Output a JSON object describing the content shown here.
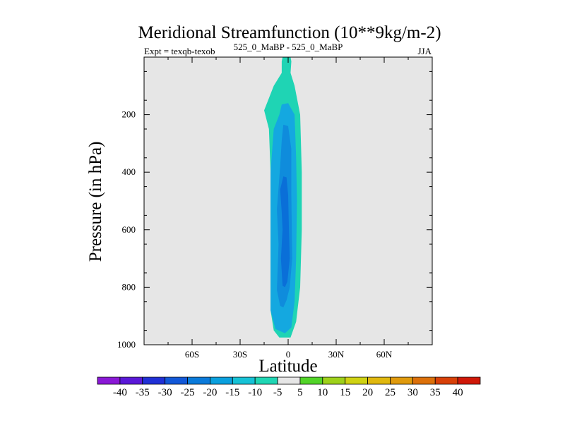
{
  "chart_data": {
    "type": "contour",
    "title": "Meridional Streamfunction (10**9kg/m-2)",
    "subtitle_left": "Expt = texqb-texob",
    "subtitle_center": "525_0_MaBP - 525_0_MaBP",
    "subtitle_right": "JJA",
    "xlabel": "Latitude",
    "ylabel": "Pressure (in hPa)",
    "xlim": [
      -90,
      90
    ],
    "ylim": [
      1000,
      0
    ],
    "x_ticks": [
      {
        "value": -60,
        "label": "60S"
      },
      {
        "value": -30,
        "label": "30S"
      },
      {
        "value": 0,
        "label": "0"
      },
      {
        "value": 30,
        "label": "30N"
      },
      {
        "value": 60,
        "label": "60N"
      }
    ],
    "y_ticks": [
      {
        "value": 200,
        "label": "200"
      },
      {
        "value": 400,
        "label": "400"
      },
      {
        "value": 600,
        "label": "600"
      },
      {
        "value": 800,
        "label": "800"
      },
      {
        "value": 1000,
        "label": "1000"
      }
    ],
    "background_color": "#e6e6e6",
    "contour_regions": [
      {
        "level": "-5 to -10",
        "color": "#1fd4b4",
        "points": [
          [
            -3.5,
            0
          ],
          [
            1.5,
            0
          ],
          [
            2,
            15
          ],
          [
            1.5,
            55
          ],
          [
            4,
            100
          ],
          [
            7.5,
            200
          ],
          [
            8.5,
            400
          ],
          [
            8.5,
            600
          ],
          [
            7.5,
            800
          ],
          [
            5,
            920
          ],
          [
            1.5,
            975
          ],
          [
            -5.5,
            975
          ],
          [
            -9,
            950
          ],
          [
            -11,
            880
          ],
          [
            -11,
            800
          ],
          [
            -11,
            600
          ],
          [
            -11,
            400
          ],
          [
            -12,
            250
          ],
          [
            -15,
            185
          ],
          [
            -9,
            100
          ],
          [
            -4,
            55
          ],
          [
            -4,
            15
          ]
        ]
      },
      {
        "level": "-10 to -15",
        "color": "#14a8e0",
        "points": [
          [
            -4,
            165
          ],
          [
            0,
            160
          ],
          [
            4,
            200
          ],
          [
            5,
            350
          ],
          [
            5.5,
            500
          ],
          [
            5,
            700
          ],
          [
            4,
            850
          ],
          [
            2,
            940
          ],
          [
            -2,
            960
          ],
          [
            -8,
            945
          ],
          [
            -11,
            880
          ],
          [
            -11,
            600
          ],
          [
            -11,
            400
          ],
          [
            -9,
            250
          ],
          [
            -5.5,
            200
          ]
        ]
      },
      {
        "level": "-15 to -20",
        "color": "#0f8cdc",
        "points": [
          [
            -3,
            235
          ],
          [
            0,
            240
          ],
          [
            2,
            320
          ],
          [
            2,
            480
          ],
          [
            2.5,
            700
          ],
          [
            1,
            800
          ],
          [
            -1,
            845
          ],
          [
            -3,
            870
          ],
          [
            -5,
            865
          ],
          [
            -7,
            810
          ],
          [
            -6,
            650
          ],
          [
            -7,
            530
          ],
          [
            -5,
            380
          ],
          [
            -4,
            290
          ]
        ]
      },
      {
        "level": "-20 to -25",
        "color": "#0a6fd8",
        "points": [
          [
            -3,
            415
          ],
          [
            -1,
            418
          ],
          [
            0,
            480
          ],
          [
            0.5,
            600
          ],
          [
            1,
            700
          ],
          [
            -0.5,
            780
          ],
          [
            -2,
            800
          ],
          [
            -3.5,
            795
          ],
          [
            -4.5,
            700
          ],
          [
            -3.5,
            600
          ],
          [
            -4,
            540
          ],
          [
            -5,
            460
          ]
        ]
      }
    ],
    "colorbar": {
      "labels": [
        "-40",
        "-35",
        "-30",
        "-25",
        "-20",
        "-15",
        "-10",
        "-5",
        "5",
        "10",
        "15",
        "20",
        "25",
        "30",
        "35",
        "40"
      ],
      "colors": [
        "#8a18d6",
        "#5a18d8",
        "#2030d6",
        "#1258d8",
        "#0a7ada",
        "#0aa0de",
        "#16c2d6",
        "#1fd6b4",
        "#e6e6e6",
        "#52d428",
        "#9ed11a",
        "#cfd212",
        "#e0b80e",
        "#e09a0c",
        "#dc700a",
        "#d84008",
        "#d01808"
      ]
    }
  }
}
